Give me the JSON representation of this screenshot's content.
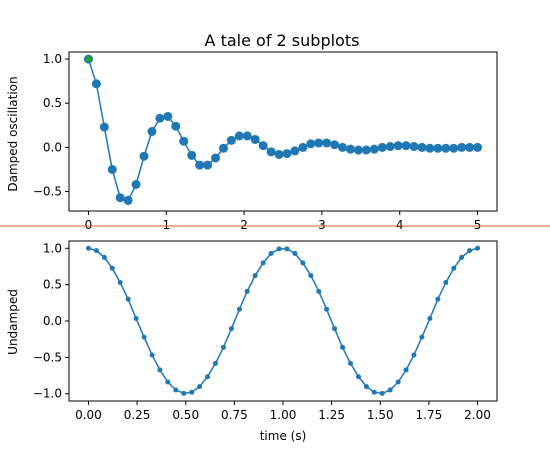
{
  "page_title": "A tale of 2 subplots",
  "chart_data": [
    {
      "type": "line",
      "title": "A tale of 2 subplots",
      "xlabel": "",
      "ylabel": "Damped oscillation",
      "xlim": [
        -0.25,
        5.25
      ],
      "ylim": [
        -0.72,
        1.08
      ],
      "xticks": [
        0,
        1,
        2,
        3,
        4,
        5
      ],
      "xtick_labels": [
        "0",
        "1",
        "2",
        "3",
        "4",
        "5"
      ],
      "yticks": [
        -0.5,
        0.0,
        0.5,
        1.0
      ],
      "ytick_labels": [
        "−0.5",
        "0.0",
        "0.5",
        "1.0"
      ],
      "grid": false,
      "line_color": "#1f77b4",
      "marker": "o",
      "highlight_point": {
        "x": 0,
        "y": 1.0,
        "color": "#2ca02c"
      },
      "series": [
        {
          "x": [
            0.0,
            0.102,
            0.204,
            0.306,
            0.408,
            0.51,
            0.612,
            0.714,
            0.816,
            0.918,
            1.02,
            1.122,
            1.224,
            1.327,
            1.429,
            1.531,
            1.633,
            1.735,
            1.837,
            1.939,
            2.041,
            2.143,
            2.245,
            2.347,
            2.449,
            2.551,
            2.653,
            2.755,
            2.857,
            2.959,
            3.061,
            3.163,
            3.265,
            3.367,
            3.469,
            3.571,
            3.673,
            3.776,
            3.878,
            3.98,
            4.082,
            4.184,
            4.286,
            4.388,
            4.49,
            4.592,
            4.694,
            4.796,
            4.898,
            5.0
          ],
          "values": [
            1.0,
            0.72,
            0.23,
            -0.25,
            -0.57,
            -0.6,
            -0.42,
            -0.1,
            0.18,
            0.33,
            0.35,
            0.24,
            0.07,
            -0.09,
            -0.2,
            -0.2,
            -0.12,
            -0.01,
            0.08,
            0.13,
            0.13,
            0.09,
            0.02,
            -0.05,
            -0.08,
            -0.07,
            -0.04,
            0.0,
            0.04,
            0.05,
            0.05,
            0.03,
            0.0,
            -0.02,
            -0.03,
            -0.03,
            -0.02,
            0.0,
            0.01,
            0.02,
            0.02,
            0.01,
            0.0,
            -0.01,
            -0.01,
            -0.01,
            -0.01,
            0.0,
            0.0,
            0.0
          ]
        }
      ]
    },
    {
      "type": "line",
      "title": "",
      "xlabel": "time (s)",
      "ylabel": "Undamped",
      "xlim": [
        -0.1,
        2.1
      ],
      "ylim": [
        -1.1,
        1.1
      ],
      "xticks": [
        0.0,
        0.25,
        0.5,
        0.75,
        1.0,
        1.25,
        1.5,
        1.75,
        2.0
      ],
      "xtick_labels": [
        "0.00",
        "0.25",
        "0.50",
        "0.75",
        "1.00",
        "1.25",
        "1.50",
        "1.75",
        "2.00"
      ],
      "yticks": [
        -1.0,
        -0.5,
        0.0,
        0.5,
        1.0
      ],
      "ytick_labels": [
        "−1.0",
        "−0.5",
        "0.0",
        "0.5",
        "1.0"
      ],
      "grid": false,
      "line_color": "#1f77b4",
      "marker": ".",
      "series": [
        {
          "x": [
            0.0,
            0.041,
            0.082,
            0.122,
            0.163,
            0.204,
            0.245,
            0.286,
            0.327,
            0.367,
            0.408,
            0.449,
            0.49,
            0.531,
            0.571,
            0.612,
            0.653,
            0.694,
            0.735,
            0.776,
            0.816,
            0.857,
            0.898,
            0.939,
            0.98,
            1.02,
            1.061,
            1.102,
            1.143,
            1.184,
            1.224,
            1.265,
            1.306,
            1.347,
            1.388,
            1.429,
            1.469,
            1.51,
            1.551,
            1.592,
            1.633,
            1.673,
            1.714,
            1.755,
            1.796,
            1.837,
            1.878,
            1.918,
            1.959,
            2.0
          ],
          "values": [
            1.0,
            0.968,
            0.874,
            0.726,
            0.529,
            0.3,
            0.034,
            -0.222,
            -0.467,
            -0.672,
            -0.839,
            -0.949,
            -0.995,
            -0.98,
            -0.902,
            -0.766,
            -0.582,
            -0.362,
            -0.104,
            0.161,
            0.408,
            0.625,
            0.8,
            0.929,
            0.992,
            0.992,
            0.929,
            0.8,
            0.625,
            0.408,
            0.161,
            -0.104,
            -0.362,
            -0.582,
            -0.766,
            -0.902,
            -0.98,
            -0.995,
            -0.949,
            -0.839,
            -0.672,
            -0.467,
            -0.222,
            0.034,
            0.3,
            0.529,
            0.726,
            0.874,
            0.968,
            1.0
          ]
        }
      ]
    }
  ]
}
